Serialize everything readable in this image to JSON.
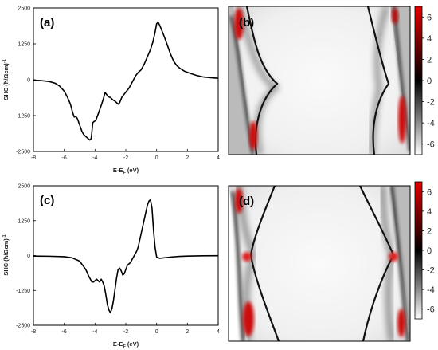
{
  "chart_data": [
    {
      "type": "line",
      "panel": "(a)",
      "xlabel": "E-E",
      "xlabel_sub": "F",
      "xlabel_unit": " (eV)",
      "ylabel": "SHC (ħ/Ωcm)",
      "ylabel_sup": "-1",
      "xlim": [
        -8,
        4
      ],
      "ylim": [
        -2500,
        2500
      ],
      "xticks": [
        "-8",
        "-6",
        "-4",
        "-2",
        "0",
        "2",
        "4"
      ],
      "yticks": [
        "2500",
        "1250",
        "0",
        "-1250",
        "-2500"
      ],
      "series": [
        {
          "x": [
            -8,
            -7.5,
            -7,
            -6.6,
            -6.3,
            -6,
            -5.8,
            -5.6,
            -5.45,
            -5.35,
            -5.25,
            -5.15,
            -5.05,
            -4.95,
            -4.85,
            -4.75,
            -4.6,
            -4.45,
            -4.35,
            -4.25,
            -4.2,
            -4.15,
            -4.05,
            -3.95,
            -3.8,
            -3.6,
            -3.45,
            -3.35,
            -3.3,
            -3.2,
            -3.1,
            -3.0,
            -2.85,
            -2.7,
            -2.6,
            -2.5,
            -2.4,
            -2.25,
            -2.1,
            -1.95,
            -1.8,
            -1.65,
            -1.5,
            -1.35,
            -1.2,
            -1.0,
            -0.8,
            -0.6,
            -0.4,
            -0.25,
            -0.1,
            0.0,
            0.1,
            0.2,
            0.35,
            0.5,
            0.7,
            0.9,
            1.1,
            1.3,
            1.5,
            1.8,
            2.2,
            2.6,
            3.0,
            3.5,
            4.0
          ],
          "y": [
            -20,
            -30,
            -60,
            -120,
            -220,
            -400,
            -600,
            -850,
            -1150,
            -1300,
            -1280,
            -1350,
            -1500,
            -1650,
            -1800,
            -1900,
            -1980,
            -2050,
            -2100,
            -2050,
            -1800,
            -1500,
            -1450,
            -1420,
            -1200,
            -900,
            -650,
            -450,
            -480,
            -550,
            -600,
            -620,
            -700,
            -750,
            -800,
            -850,
            -800,
            -600,
            -500,
            -400,
            -300,
            -150,
            0,
            150,
            250,
            350,
            550,
            800,
            1050,
            1300,
            1650,
            1950,
            2000,
            1900,
            1700,
            1500,
            1200,
            900,
            650,
            500,
            400,
            300,
            220,
            150,
            100,
            70,
            50
          ]
        }
      ]
    },
    {
      "type": "line",
      "panel": "(c)",
      "xlabel": "E-E",
      "xlabel_sub": "F",
      "xlabel_unit": " (eV)",
      "ylabel": "SHC (ħ/Ωcm)",
      "ylabel_sup": "-1",
      "xlim": [
        -8,
        4
      ],
      "ylim": [
        -2500,
        2500
      ],
      "xticks": [
        "-8",
        "-6",
        "-4",
        "-2",
        "0",
        "2",
        "4"
      ],
      "yticks": [
        "2500",
        "1250",
        "0",
        "-1250",
        "-2500"
      ],
      "series": [
        {
          "x": [
            -8,
            -7,
            -6,
            -5.5,
            -5,
            -4.6,
            -4.4,
            -4.2,
            -4.1,
            -4.0,
            -3.9,
            -3.8,
            -3.7,
            -3.6,
            -3.5,
            -3.4,
            -3.3,
            -3.2,
            -3.1,
            -3.0,
            -2.9,
            -2.8,
            -2.7,
            -2.6,
            -2.5,
            -2.4,
            -2.3,
            -2.2,
            -2.1,
            -2.0,
            -1.9,
            -1.8,
            -1.7,
            -1.6,
            -1.5,
            -1.4,
            -1.3,
            -1.2,
            -1.1,
            -1.0,
            -0.9,
            -0.8,
            -0.7,
            -0.6,
            -0.5,
            -0.4,
            -0.3,
            -0.2,
            -0.1,
            0.0,
            0.2,
            0.5,
            1.0,
            1.5,
            2.0,
            3.0,
            4.0
          ],
          "y": [
            -20,
            -25,
            -40,
            -80,
            -200,
            -500,
            -750,
            -950,
            -950,
            -900,
            -850,
            -900,
            -950,
            -850,
            -950,
            -1100,
            -1400,
            -1750,
            -1950,
            -2050,
            -1900,
            -1600,
            -1200,
            -800,
            -500,
            -450,
            -550,
            -700,
            -650,
            -500,
            -350,
            -300,
            -250,
            -150,
            -50,
            50,
            150,
            300,
            550,
            800,
            1050,
            1300,
            1550,
            1800,
            1950,
            2000,
            1700,
            900,
            300,
            -50,
            -100,
            -80,
            -50,
            -30,
            -20,
            -10,
            -5
          ]
        }
      ]
    },
    {
      "type": "heatmap",
      "panel": "(b)",
      "colorbar": {
        "ticks": [
          "6",
          "4",
          "2",
          "0",
          "-2",
          "-4",
          "-6"
        ],
        "range": [
          -7,
          7
        ]
      }
    },
    {
      "type": "heatmap",
      "panel": "(d)",
      "colorbar": {
        "ticks": [
          "6",
          "4",
          "2",
          "0",
          "-2",
          "-4",
          "-6"
        ],
        "range": [
          -7,
          7
        ]
      }
    }
  ],
  "colors": {
    "curve": "#000000",
    "map_background": "#f4f4f4",
    "map_line": "#111111",
    "hot": "#cc1010",
    "colorbar_top": "#e00000",
    "colorbar_mid": "#000000",
    "colorbar_bottom": "#ffffff"
  }
}
